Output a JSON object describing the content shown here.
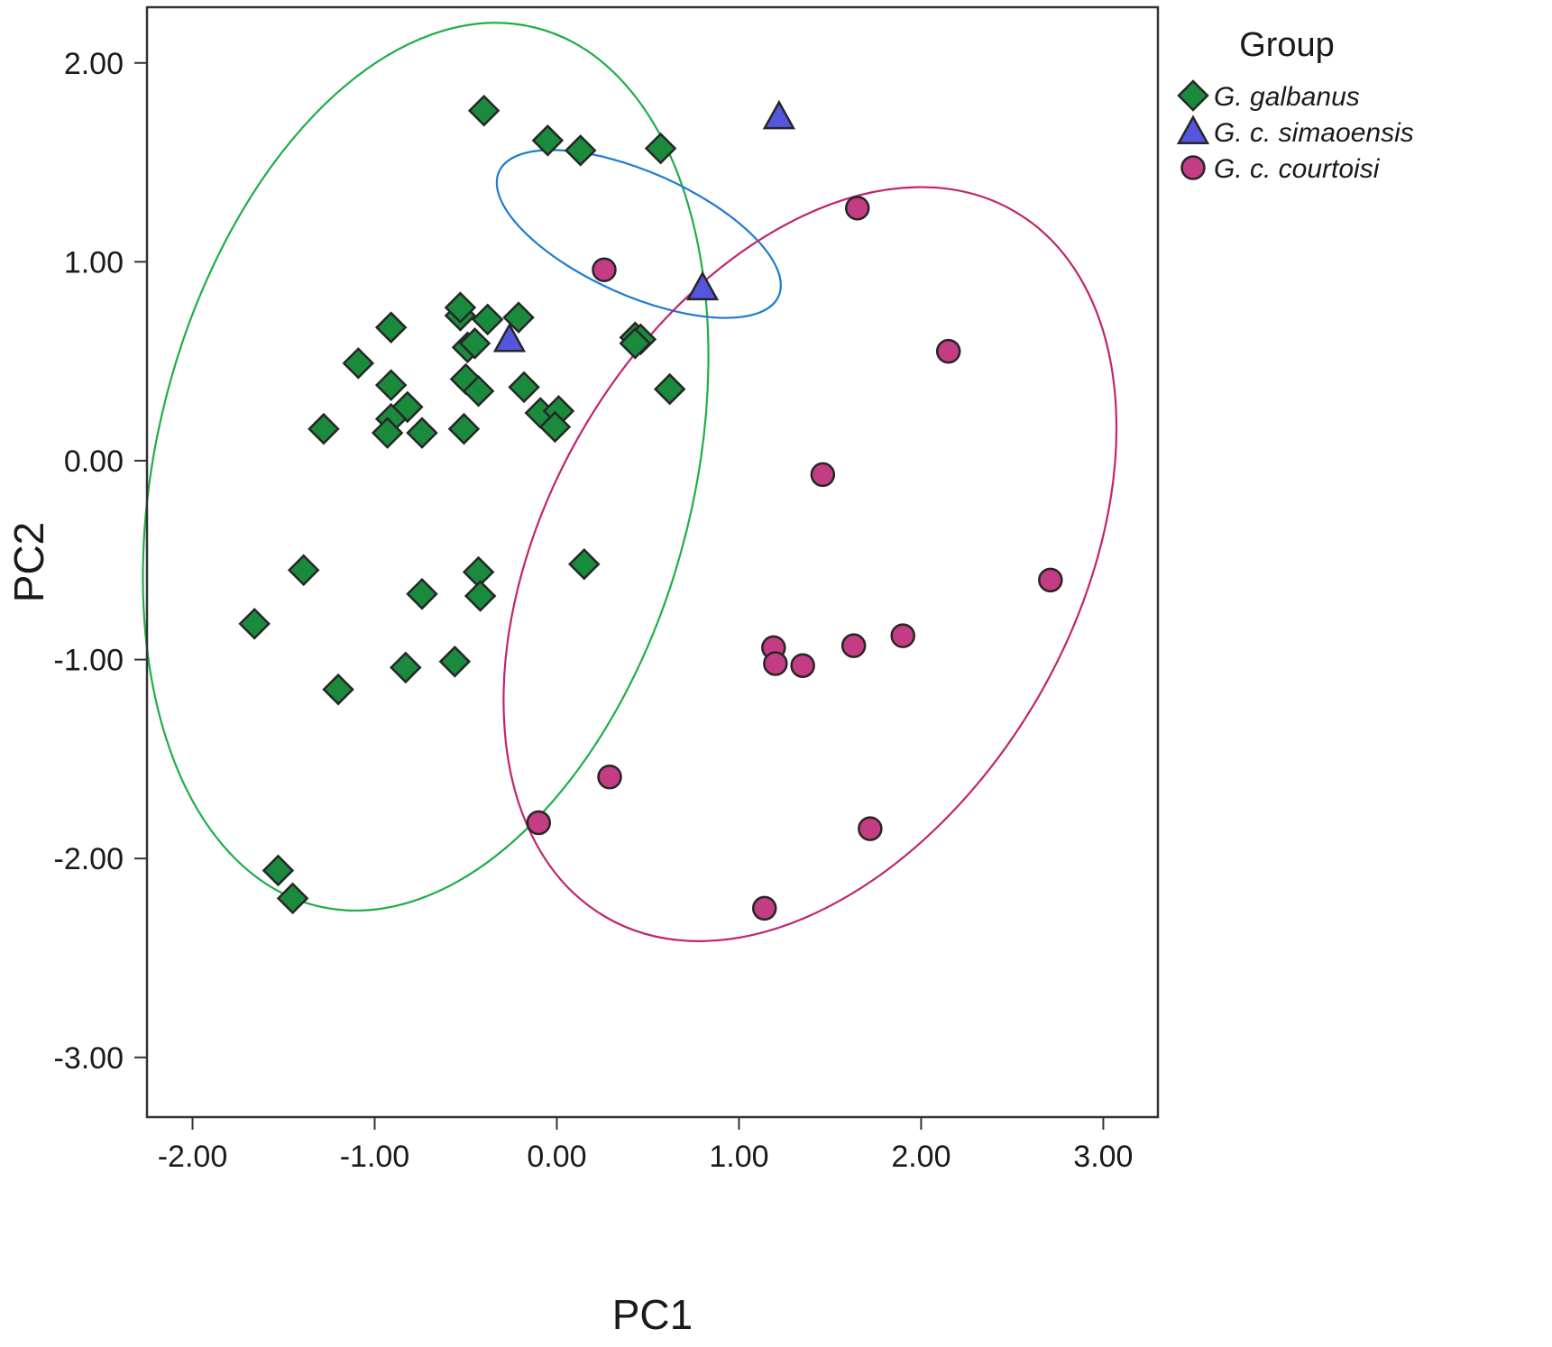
{
  "chart_data": {
    "type": "scatter",
    "xlabel": "PC1",
    "ylabel": "PC2",
    "xlim": [
      -2.25,
      3.3
    ],
    "ylim": [
      -3.3,
      2.28
    ],
    "xticks": [
      -2,
      -1,
      0,
      1,
      2,
      3
    ],
    "yticks": [
      2,
      1,
      0,
      -1,
      -2,
      -3
    ],
    "xtick_labels": [
      "-2.00",
      "-1.00",
      "0.00",
      "1.00",
      "2.00",
      "3.00"
    ],
    "ytick_labels": [
      "2.00",
      "1.00",
      "0.00",
      "-1.00",
      "-2.00",
      "-3.00"
    ],
    "grid": false,
    "legend": {
      "title": "Group",
      "placement": "top-right-outside"
    },
    "series": [
      {
        "name": "G. galbanus",
        "marker": "diamond",
        "color": "#1a8a3c",
        "points": [
          [
            -0.4,
            1.76
          ],
          [
            -0.05,
            1.61
          ],
          [
            0.13,
            1.56
          ],
          [
            0.57,
            1.57
          ],
          [
            -0.53,
            0.73
          ],
          [
            -0.53,
            0.77
          ],
          [
            -0.38,
            0.71
          ],
          [
            -0.21,
            0.72
          ],
          [
            -0.91,
            0.67
          ],
          [
            -0.49,
            0.57
          ],
          [
            -0.45,
            0.59
          ],
          [
            0.43,
            0.62
          ],
          [
            0.46,
            0.61
          ],
          [
            0.43,
            0.59
          ],
          [
            -1.09,
            0.49
          ],
          [
            -0.5,
            0.41
          ],
          [
            -0.91,
            0.38
          ],
          [
            -0.43,
            0.35
          ],
          [
            -0.18,
            0.37
          ],
          [
            0.62,
            0.36
          ],
          [
            -0.82,
            0.27
          ],
          [
            -0.91,
            0.21
          ],
          [
            -0.93,
            0.14
          ],
          [
            -0.09,
            0.24
          ],
          [
            0.01,
            0.25
          ],
          [
            -0.01,
            0.17
          ],
          [
            -1.28,
            0.16
          ],
          [
            -0.74,
            0.14
          ],
          [
            -0.51,
            0.16
          ],
          [
            -1.39,
            -0.55
          ],
          [
            0.15,
            -0.52
          ],
          [
            -0.43,
            -0.56
          ],
          [
            -0.74,
            -0.67
          ],
          [
            -0.42,
            -0.68
          ],
          [
            -1.66,
            -0.82
          ],
          [
            -0.83,
            -1.04
          ],
          [
            -0.56,
            -1.01
          ],
          [
            -1.2,
            -1.15
          ],
          [
            -1.53,
            -2.06
          ],
          [
            -1.45,
            -2.2
          ]
        ]
      },
      {
        "name": "G. c. simaoensis",
        "marker": "triangle",
        "color": "#5555e0",
        "points": [
          [
            1.22,
            1.73
          ],
          [
            0.8,
            0.87
          ],
          [
            -0.26,
            0.61
          ]
        ]
      },
      {
        "name": "G. c. courtoisi",
        "marker": "circle",
        "color": "#c43c84",
        "points": [
          [
            1.65,
            1.27
          ],
          [
            0.26,
            0.96
          ],
          [
            2.15,
            0.55
          ],
          [
            1.46,
            -0.07
          ],
          [
            2.71,
            -0.6
          ],
          [
            1.19,
            -0.94
          ],
          [
            1.2,
            -1.02
          ],
          [
            1.35,
            -1.03
          ],
          [
            1.63,
            -0.93
          ],
          [
            1.9,
            -0.88
          ],
          [
            0.29,
            -1.59
          ],
          [
            -0.1,
            -1.82
          ],
          [
            1.72,
            -1.85
          ],
          [
            1.14,
            -2.25
          ]
        ]
      }
    ],
    "ellipses": [
      {
        "group": "G. galbanus",
        "color": "#1fae48",
        "center": [
          -0.72,
          -0.03
        ],
        "width": 2.95,
        "height": 4.55,
        "angle_deg": 14
      },
      {
        "group": "G. c. simaoensis",
        "color": "#1f7ad0",
        "center": [
          0.45,
          1.14
        ],
        "width": 1.68,
        "height": 0.62,
        "angle_deg": 24
      },
      {
        "group": "G. c. courtoisi",
        "color": "#c0246e",
        "center": [
          1.39,
          -0.52
        ],
        "width": 2.9,
        "height": 4.1,
        "angle_deg": 30
      }
    ]
  }
}
